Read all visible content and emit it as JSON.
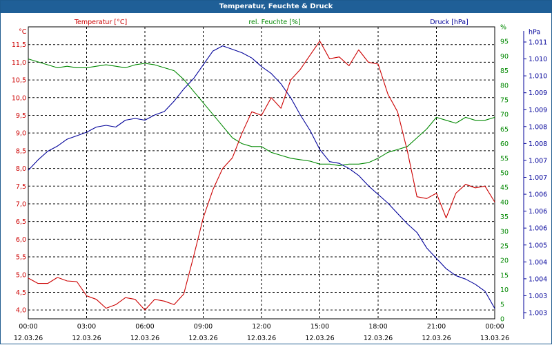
{
  "window": {
    "title": "Temperatur, Feuchte & Druck"
  },
  "colors": {
    "temperature": "#cc0000",
    "humidity": "#008800",
    "pressure": "#000099",
    "titlebar": "#1f5f97",
    "grid": "#000000"
  },
  "chart_data": {
    "type": "line",
    "title": "Temperatur, Feuchte & Druck",
    "x": [
      "00:00",
      "00:30",
      "01:00",
      "01:30",
      "02:00",
      "02:30",
      "03:00",
      "03:30",
      "04:00",
      "04:30",
      "05:00",
      "05:30",
      "06:00",
      "06:30",
      "07:00",
      "07:30",
      "08:00",
      "08:30",
      "09:00",
      "09:30",
      "10:00",
      "10:30",
      "11:00",
      "11:30",
      "12:00",
      "12:30",
      "13:00",
      "13:30",
      "14:00",
      "14:30",
      "15:00",
      "15:30",
      "16:00",
      "16:30",
      "17:00",
      "17:30",
      "18:00",
      "18:30",
      "19:00",
      "19:30",
      "20:00",
      "20:30",
      "21:00",
      "21:30",
      "22:00",
      "22:30",
      "23:00",
      "23:30",
      "00:00"
    ],
    "x_ticks": [
      {
        "time": "00:00",
        "date": "12.03.26"
      },
      {
        "time": "03:00",
        "date": "12.03.26"
      },
      {
        "time": "06:00",
        "date": "12.03.26"
      },
      {
        "time": "09:00",
        "date": "12.03.26"
      },
      {
        "time": "12:00",
        "date": "12.03.26"
      },
      {
        "time": "15:00",
        "date": "12.03.26"
      },
      {
        "time": "18:00",
        "date": "12.03.26"
      },
      {
        "time": "21:00",
        "date": "12.03.26"
      },
      {
        "time": "00:00",
        "date": "13.03.26"
      }
    ],
    "grid": true,
    "series": [
      {
        "name": "Temperatur [°C]",
        "axis": "left",
        "color": "#cc0000",
        "values": [
          4.9,
          4.75,
          4.75,
          4.92,
          4.82,
          4.8,
          4.4,
          4.3,
          4.05,
          4.15,
          4.35,
          4.3,
          4.0,
          4.3,
          4.25,
          4.15,
          4.45,
          5.5,
          6.6,
          7.4,
          8.0,
          8.3,
          9.0,
          9.6,
          9.5,
          10.0,
          9.7,
          10.5,
          10.8,
          11.2,
          11.6,
          11.1,
          11.15,
          10.9,
          11.35,
          11.0,
          10.95,
          10.1,
          9.6,
          8.5,
          7.2,
          7.15,
          7.3,
          6.6,
          7.3,
          7.55,
          7.45,
          7.5,
          7.05
        ],
        "y_ticks": [
          "4,0",
          "4,5",
          "5,0",
          "5,5",
          "6,0",
          "6,5",
          "7,0",
          "7,5",
          "8,0",
          "8,5",
          "9,0",
          "9,5",
          "10,0",
          "10,5",
          "11,0",
          "11,5"
        ],
        "ylim": [
          3.75,
          12.0
        ],
        "unit": "°C"
      },
      {
        "name": "rel. Feuchte [%]",
        "axis": "right",
        "color": "#008800",
        "values": [
          89,
          88,
          87,
          86,
          86.5,
          86,
          86,
          86.5,
          87,
          86.5,
          86,
          87,
          87.5,
          87,
          86,
          85,
          82,
          78,
          74,
          70,
          66,
          62,
          60,
          59,
          59,
          57,
          56,
          55,
          54.5,
          54,
          53,
          53,
          52.5,
          53,
          53,
          53.5,
          55,
          57,
          58,
          59,
          62,
          65,
          69,
          68,
          67,
          69,
          68,
          68,
          69
        ],
        "y_ticks": [
          "0",
          "5",
          "10",
          "15",
          "20",
          "25",
          "30",
          "35",
          "40",
          "45",
          "50",
          "55",
          "60",
          "65",
          "70",
          "75",
          "80",
          "85",
          "90",
          "95",
          "%"
        ],
        "ylim": [
          0,
          100
        ],
        "unit": "%"
      },
      {
        "name": "Druck [hPa]",
        "axis": "right",
        "color": "#000099",
        "values": [
          1007.0,
          1007.3,
          1007.55,
          1007.7,
          1007.9,
          1008.0,
          1008.1,
          1008.25,
          1008.3,
          1008.25,
          1008.45,
          1008.5,
          1008.45,
          1008.6,
          1008.7,
          1009.0,
          1009.35,
          1009.65,
          1010.05,
          1010.45,
          1010.6,
          1010.5,
          1010.4,
          1010.25,
          1010.0,
          1009.8,
          1009.5,
          1009.1,
          1008.6,
          1008.15,
          1007.6,
          1007.25,
          1007.2,
          1007.05,
          1006.85,
          1006.55,
          1006.3,
          1006.05,
          1005.75,
          1005.45,
          1005.2,
          1004.75,
          1004.45,
          1004.15,
          1003.95,
          1003.85,
          1003.7,
          1003.5,
          1003.0
        ],
        "y_ticks": [
          "1.003",
          "1.003",
          "1.004",
          "1.004",
          "1.005",
          "1.006",
          "1.006",
          "1.006",
          "1.007",
          "1.007",
          "1.008",
          "1.008",
          "1.009",
          "1.009",
          "1.010",
          "1.010",
          "1.011",
          "hPa"
        ],
        "ylim": [
          1002.7,
          1011.15
        ],
        "unit": "hPa"
      }
    ]
  }
}
